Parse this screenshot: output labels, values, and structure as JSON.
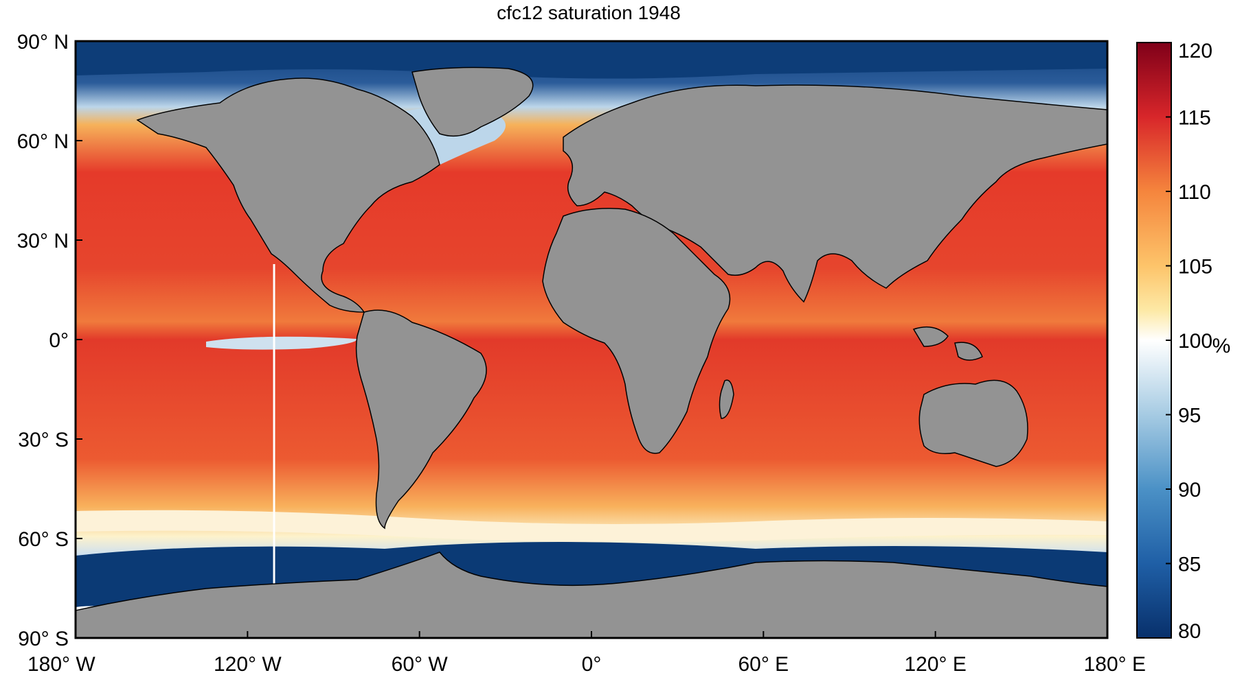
{
  "map": {
    "title": "cfc12 saturation 1948",
    "lat_ticks": [
      {
        "value": 90,
        "label": "90° N"
      },
      {
        "value": 60,
        "label": "60° N"
      },
      {
        "value": 30,
        "label": "30° N"
      },
      {
        "value": 0,
        "label": "0°"
      },
      {
        "value": -30,
        "label": "30° S"
      },
      {
        "value": -60,
        "label": "60° S"
      },
      {
        "value": -90,
        "label": "90° S"
      }
    ],
    "lon_ticks": [
      {
        "value": -180,
        "label": "180° W"
      },
      {
        "value": -120,
        "label": "120° W"
      },
      {
        "value": -60,
        "label": "60° W"
      },
      {
        "value": 0,
        "label": "0°"
      },
      {
        "value": 60,
        "label": "60° E"
      },
      {
        "value": 120,
        "label": "120° E"
      },
      {
        "value": 180,
        "label": "180° E"
      }
    ],
    "colorbar": {
      "unit": "%",
      "range": [
        80,
        120
      ],
      "ticks": [
        {
          "value": 120,
          "label": "120"
        },
        {
          "value": 115,
          "label": "115"
        },
        {
          "value": 110,
          "label": "110"
        },
        {
          "value": 105,
          "label": "105"
        },
        {
          "value": 100,
          "label": "100"
        },
        {
          "value": 95,
          "label": "95"
        },
        {
          "value": 90,
          "label": "90"
        },
        {
          "value": 85,
          "label": "85"
        },
        {
          "value": 80,
          "label": "80"
        }
      ],
      "stops": [
        {
          "value": 80,
          "color": "#08306b"
        },
        {
          "value": 85,
          "color": "#1f5fa6"
        },
        {
          "value": 90,
          "color": "#4b91c6"
        },
        {
          "value": 95,
          "color": "#a6cbe3"
        },
        {
          "value": 100,
          "color": "#ffffff"
        },
        {
          "value": 102,
          "color": "#fde9a6"
        },
        {
          "value": 105,
          "color": "#fdc46a"
        },
        {
          "value": 110,
          "color": "#f5853d"
        },
        {
          "value": 115,
          "color": "#d8262a"
        },
        {
          "value": 120,
          "color": "#7f0019"
        }
      ]
    },
    "colors": {
      "land": "#939393",
      "ocean_warm": "#e8452c",
      "polar_north": "#0d3d78",
      "polar_south": "#0b3a75"
    }
  }
}
